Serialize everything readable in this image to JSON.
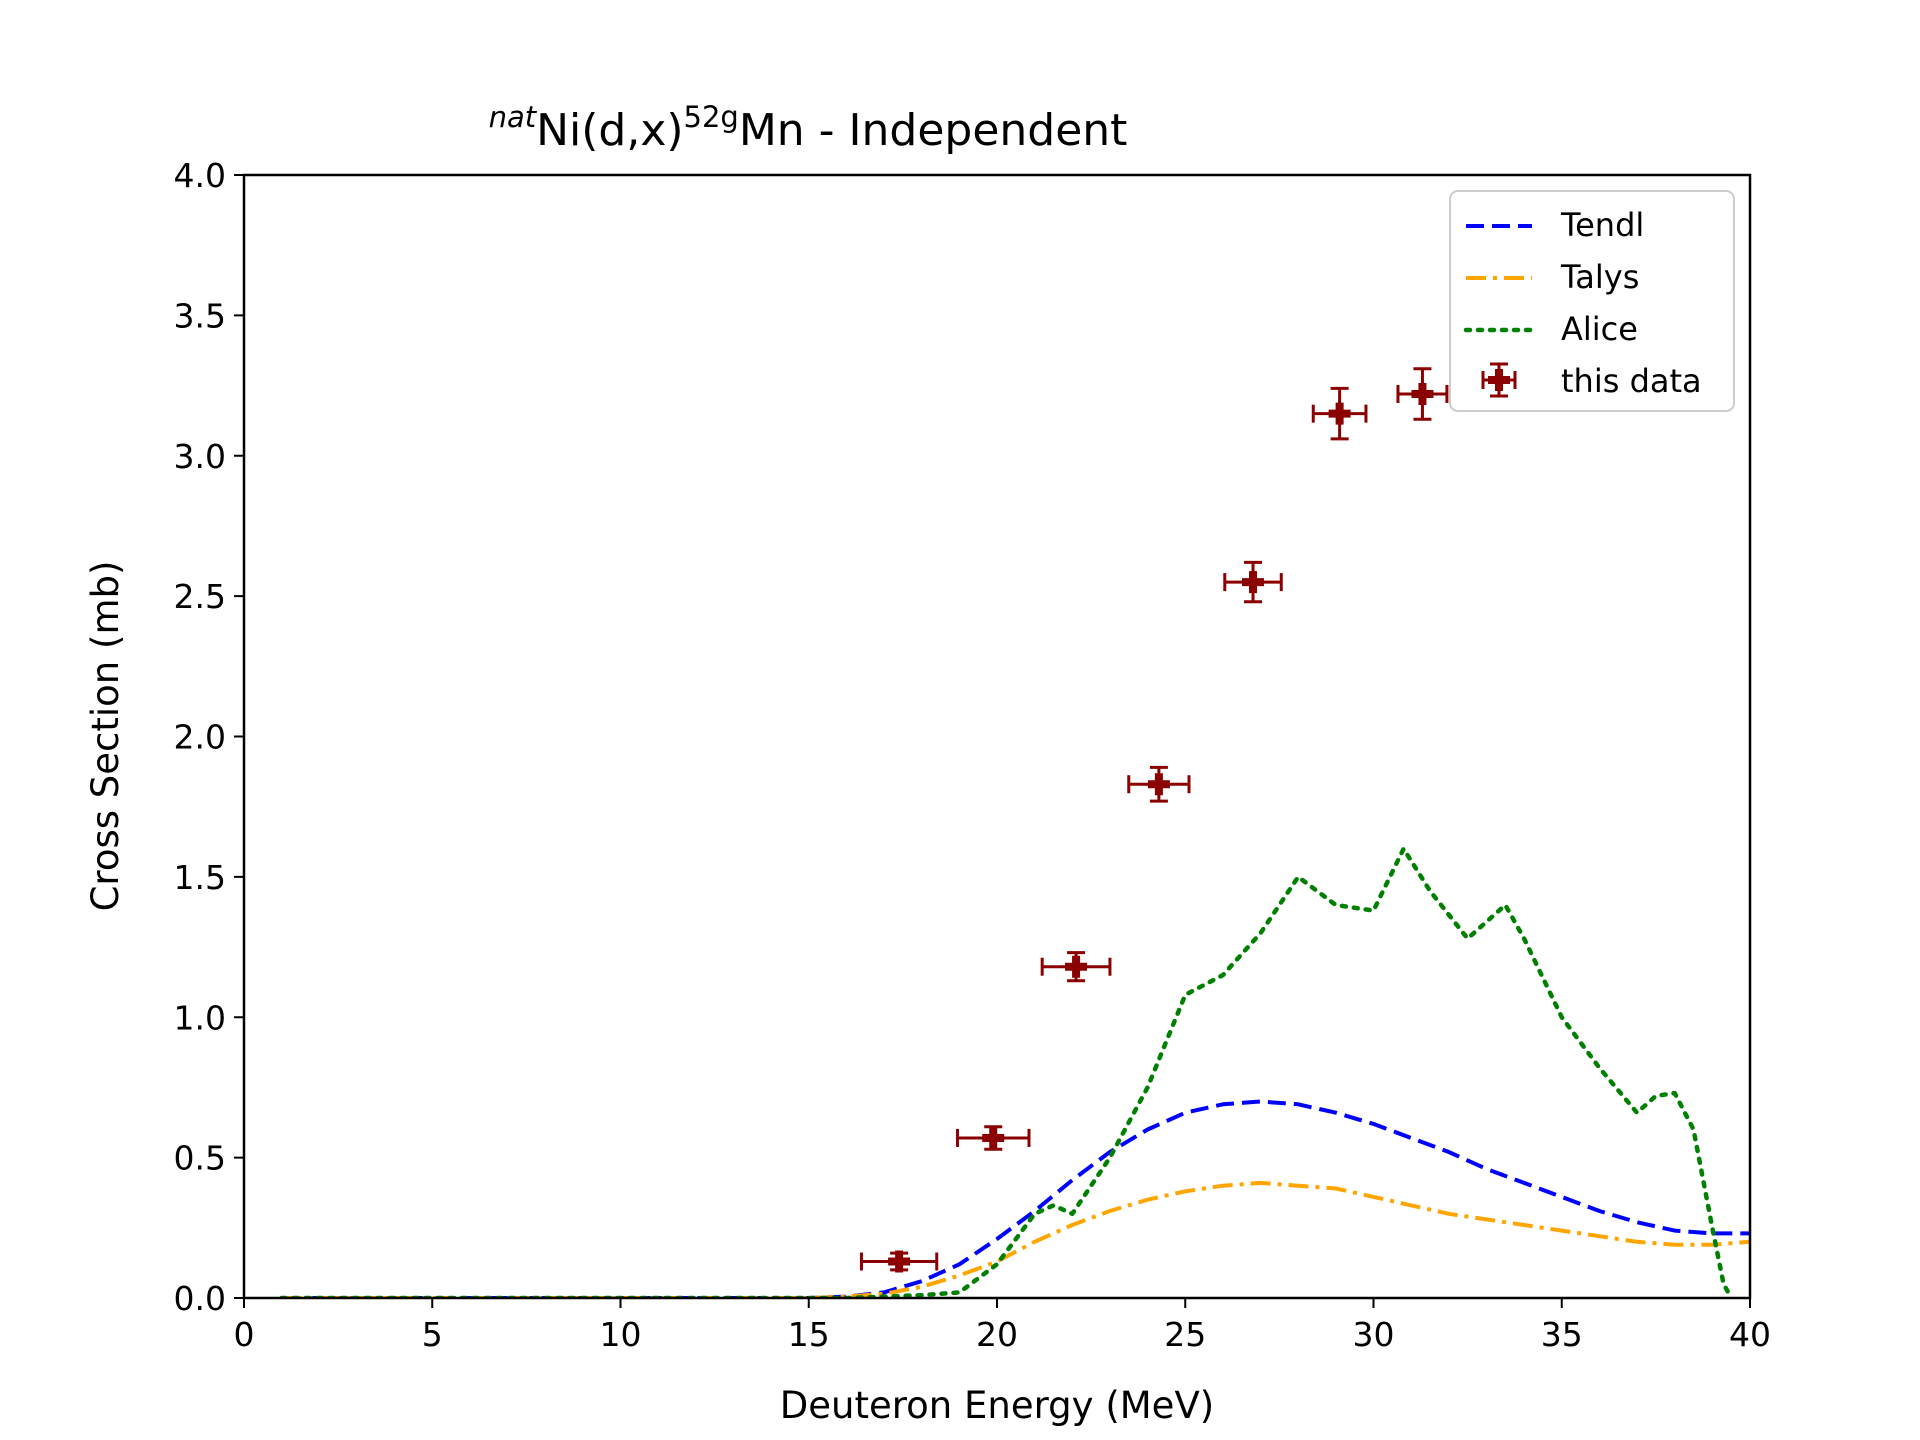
{
  "chart_data": {
    "type": "line",
    "title": {
      "prefix_sup": "nat",
      "element": "Ni(d,x)",
      "product_sup": "52g",
      "suffix": "Mn - Independent"
    },
    "xlabel": "Deuteron Energy (MeV)",
    "ylabel": "Cross Section (mb)",
    "xlim": [
      0,
      40
    ],
    "ylim": [
      0,
      4.0
    ],
    "xticks": [
      "0",
      "5",
      "10",
      "15",
      "20",
      "25",
      "30",
      "35",
      "40"
    ],
    "yticks": [
      "0.0",
      "0.5",
      "1.0",
      "1.5",
      "2.0",
      "2.5",
      "3.0",
      "3.5",
      "4.0"
    ],
    "grid": false,
    "legend_position": "top-right",
    "series": [
      {
        "name": "Tendl",
        "style": "dashed",
        "color": "#0000ff",
        "x": [
          1,
          10,
          15,
          16,
          17,
          18,
          19,
          20,
          21,
          22,
          23,
          24,
          25,
          26,
          27,
          28,
          29,
          30,
          31,
          32,
          33,
          34,
          35,
          36,
          37,
          38,
          39,
          40
        ],
        "y": [
          0,
          0,
          0,
          0.005,
          0.02,
          0.06,
          0.12,
          0.21,
          0.31,
          0.42,
          0.52,
          0.6,
          0.66,
          0.69,
          0.7,
          0.69,
          0.66,
          0.62,
          0.57,
          0.52,
          0.46,
          0.41,
          0.36,
          0.31,
          0.27,
          0.24,
          0.23,
          0.23
        ]
      },
      {
        "name": "Talys",
        "style": "dashdot",
        "color": "#ffa500",
        "x": [
          1,
          10,
          15,
          16,
          17,
          18,
          19,
          20,
          21,
          22,
          23,
          24,
          25,
          26,
          27,
          28,
          29,
          30,
          31,
          32,
          33,
          34,
          35,
          36,
          37,
          38,
          39,
          40
        ],
        "y": [
          0,
          0,
          0,
          0.005,
          0.015,
          0.04,
          0.08,
          0.13,
          0.2,
          0.26,
          0.31,
          0.35,
          0.38,
          0.4,
          0.41,
          0.4,
          0.39,
          0.36,
          0.33,
          0.3,
          0.28,
          0.26,
          0.24,
          0.22,
          0.2,
          0.19,
          0.19,
          0.2
        ]
      },
      {
        "name": "Alice",
        "style": "dotted",
        "color": "#008000",
        "x": [
          1,
          10,
          16,
          17,
          18,
          19,
          20,
          21,
          21.5,
          22,
          23,
          24,
          25,
          26,
          27,
          28,
          29,
          30,
          30.8,
          31.5,
          32.5,
          33.5,
          34,
          35,
          36,
          37,
          37.5,
          38,
          38.5,
          39,
          39.3,
          39.5
        ],
        "y": [
          0,
          0,
          0,
          0.005,
          0.01,
          0.02,
          0.12,
          0.3,
          0.33,
          0.3,
          0.5,
          0.75,
          1.08,
          1.15,
          1.3,
          1.5,
          1.4,
          1.38,
          1.6,
          1.45,
          1.28,
          1.4,
          1.28,
          1.0,
          0.82,
          0.66,
          0.72,
          0.73,
          0.6,
          0.25,
          0.05,
          0.0
        ]
      }
    ],
    "points": {
      "name": "this data",
      "color": "#8b0000",
      "data": [
        {
          "x": 17.4,
          "y": 0.13,
          "xerr": 1.0,
          "yerr": 0.03
        },
        {
          "x": 19.9,
          "y": 0.57,
          "xerr": 0.95,
          "yerr": 0.04
        },
        {
          "x": 22.1,
          "y": 1.18,
          "xerr": 0.9,
          "yerr": 0.05
        },
        {
          "x": 24.3,
          "y": 1.83,
          "xerr": 0.8,
          "yerr": 0.06
        },
        {
          "x": 26.8,
          "y": 2.55,
          "xerr": 0.75,
          "yerr": 0.07
        },
        {
          "x": 29.1,
          "y": 3.15,
          "xerr": 0.7,
          "yerr": 0.09
        },
        {
          "x": 31.3,
          "y": 3.22,
          "xerr": 0.65,
          "yerr": 0.09
        }
      ]
    }
  }
}
